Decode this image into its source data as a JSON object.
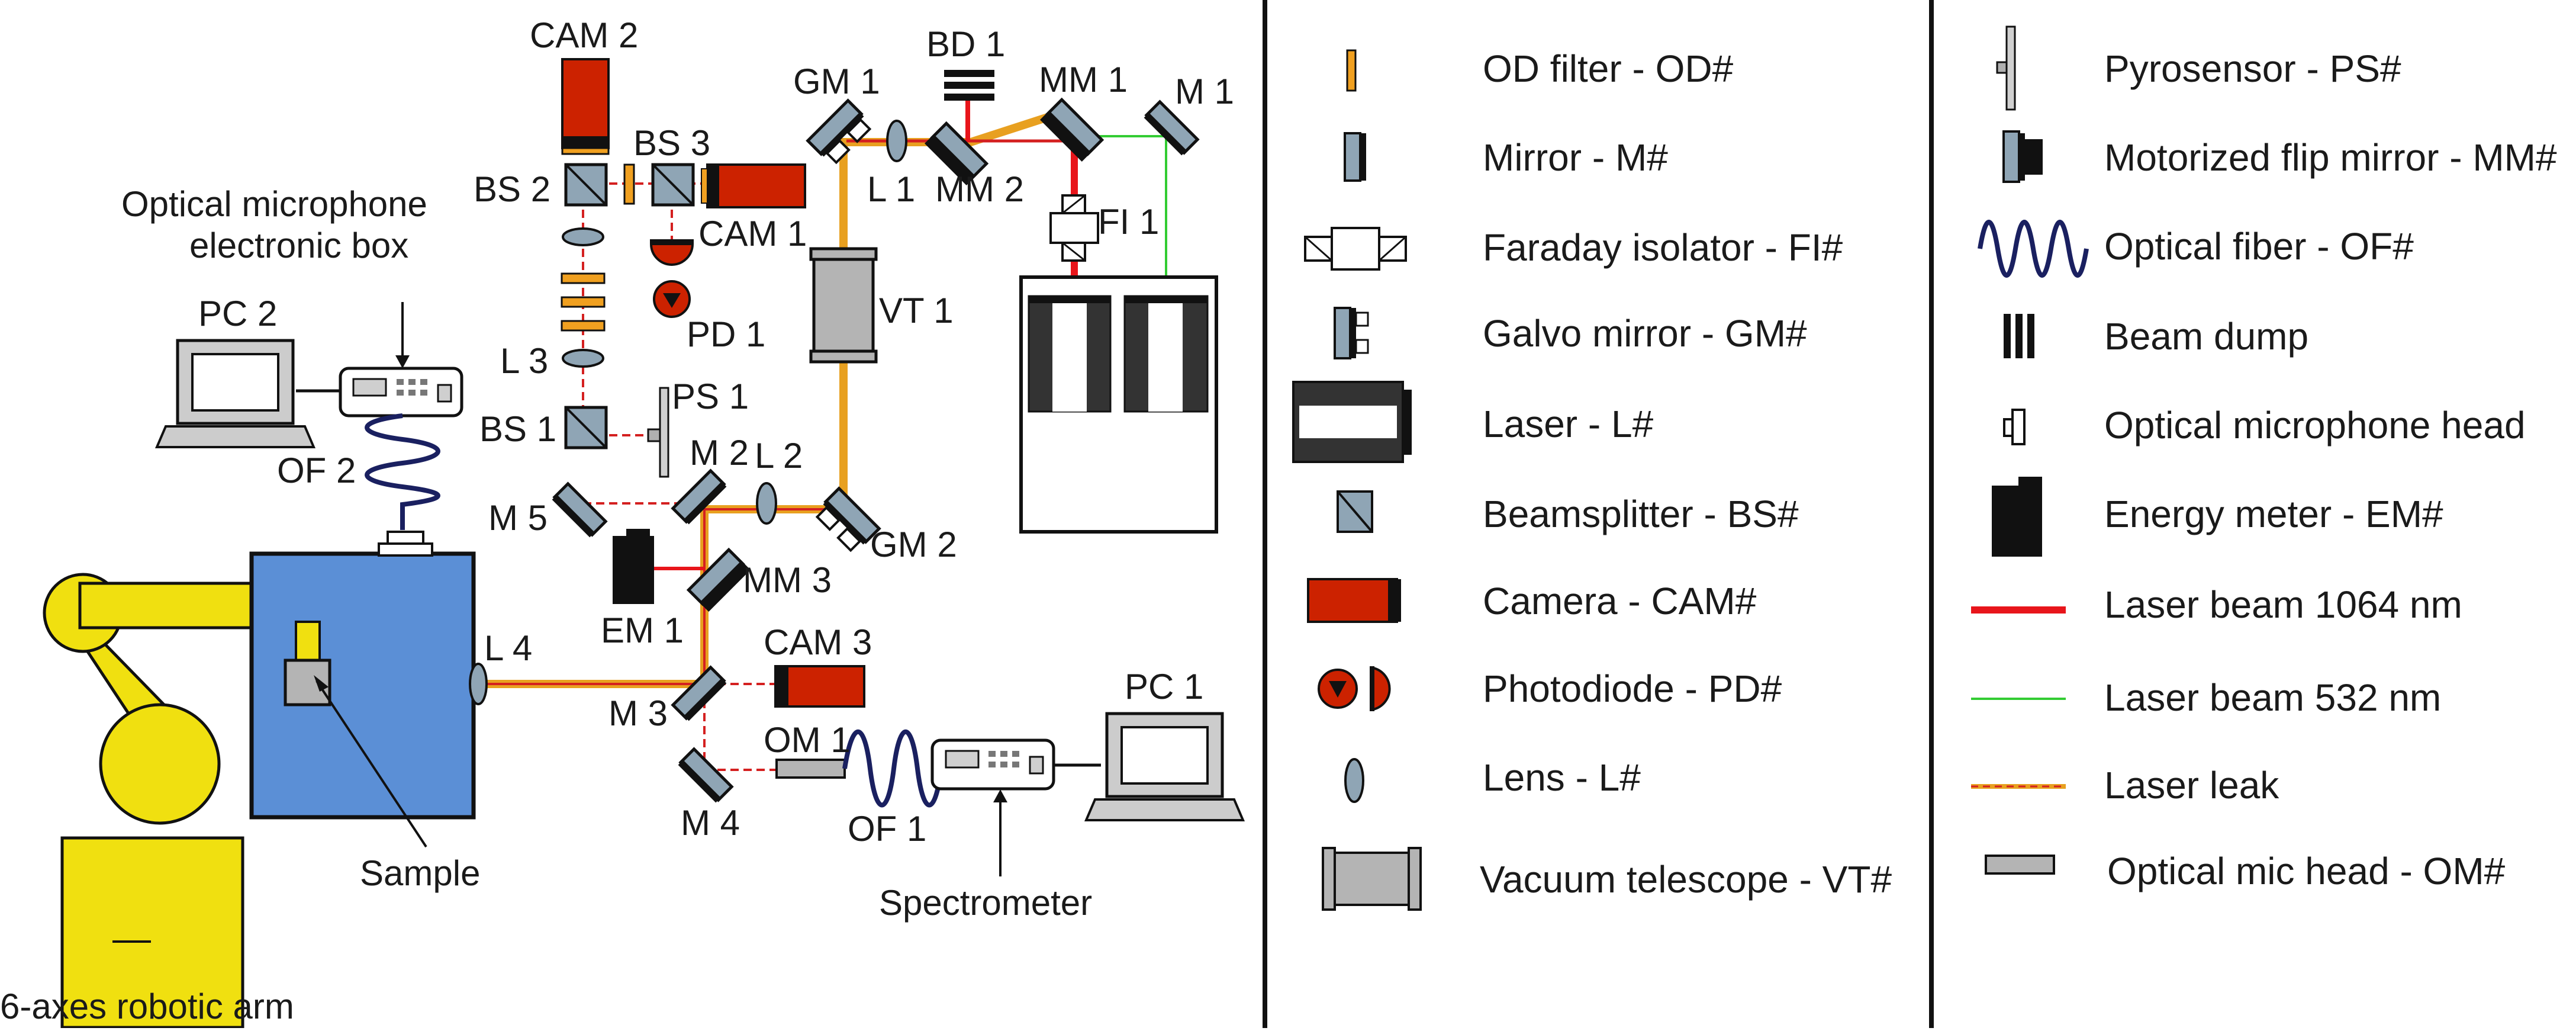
{
  "colors": {
    "beam_1064": "#e8151b",
    "beam_532": "#33cc33",
    "leak_red": "#d42020",
    "leak_orange": "#e8a020",
    "table_blue": "#5b8fd6",
    "robot_yellow": "#f0e010",
    "camera_red": "#cc2200",
    "optic_gray": "#8fa5b5",
    "fiber_navy": "#1a2060",
    "vt_gray": "#b4b4b4"
  },
  "labels": {
    "cam2": "CAM 2",
    "bd1": "BD 1",
    "gm1": "GM 1",
    "mm1": "MM 1",
    "m1": "M 1",
    "bs2": "BS 2",
    "bs3": "BS 3",
    "l1": "L 1",
    "mm2": "MM 2",
    "fi1": "FI 1",
    "om_box_line1": "Optical microphone",
    "om_box_line2": "electronic box",
    "cam1": "CAM 1",
    "vt1": "VT 1",
    "pc2": "PC 2",
    "pd1": "PD 1",
    "l3": "L 3",
    "bs1": "BS 1",
    "ps1": "PS 1",
    "of2": "OF 2",
    "m2": "M 2",
    "l2": "L 2",
    "m5": "M 5",
    "gm2": "GM 2",
    "mm3": "MM 3",
    "em1": "EM 1",
    "l4": "L 4",
    "cam3": "CAM 3",
    "m3": "M 3",
    "pc1": "PC 1",
    "om1": "OM 1",
    "m4": "M 4",
    "of1": "OF 1",
    "sample": "Sample",
    "spectrometer": "Spectrometer",
    "robot_arm": "6-axes robotic arm"
  },
  "legend_col1": [
    {
      "icon": "od-filter-icon",
      "text": "OD filter - OD#"
    },
    {
      "icon": "mirror-icon",
      "text": "Mirror - M#"
    },
    {
      "icon": "faraday-isolator-icon",
      "text": "Faraday isolator - FI#"
    },
    {
      "icon": "galvo-mirror-icon",
      "text": "Galvo mirror - GM#"
    },
    {
      "icon": "laser-icon",
      "text": "Laser - L#"
    },
    {
      "icon": "beamsplitter-icon",
      "text": "Beamsplitter - BS#"
    },
    {
      "icon": "camera-icon",
      "text": "Camera - CAM#"
    },
    {
      "icon": "photodiode-icon",
      "text": "Photodiode - PD#"
    },
    {
      "icon": "lens-icon",
      "text": "Lens - L#"
    },
    {
      "icon": "vacuum-telescope-icon",
      "text": "Vacuum telescope - VT#"
    }
  ],
  "legend_col2": [
    {
      "icon": "pyrosensor-icon",
      "text": "Pyrosensor - PS#"
    },
    {
      "icon": "motorized-flip-mirror-icon",
      "text": "Motorized flip mirror - MM#"
    },
    {
      "icon": "optical-fiber-icon",
      "text": "Optical fiber - OF#"
    },
    {
      "icon": "beam-dump-icon",
      "text": "Beam dump"
    },
    {
      "icon": "optical-microphone-head-icon",
      "text": "Optical microphone head"
    },
    {
      "icon": "energy-meter-icon",
      "text": "Energy meter - EM#"
    },
    {
      "icon": "laser-beam-1064-icon",
      "text": "Laser beam 1064 nm"
    },
    {
      "icon": "laser-beam-532-icon",
      "text": "Laser beam 532 nm"
    },
    {
      "icon": "laser-leak-icon",
      "text": "Laser leak"
    },
    {
      "icon": "optical-mic-head-icon",
      "text": "Optical mic head - OM#"
    }
  ]
}
